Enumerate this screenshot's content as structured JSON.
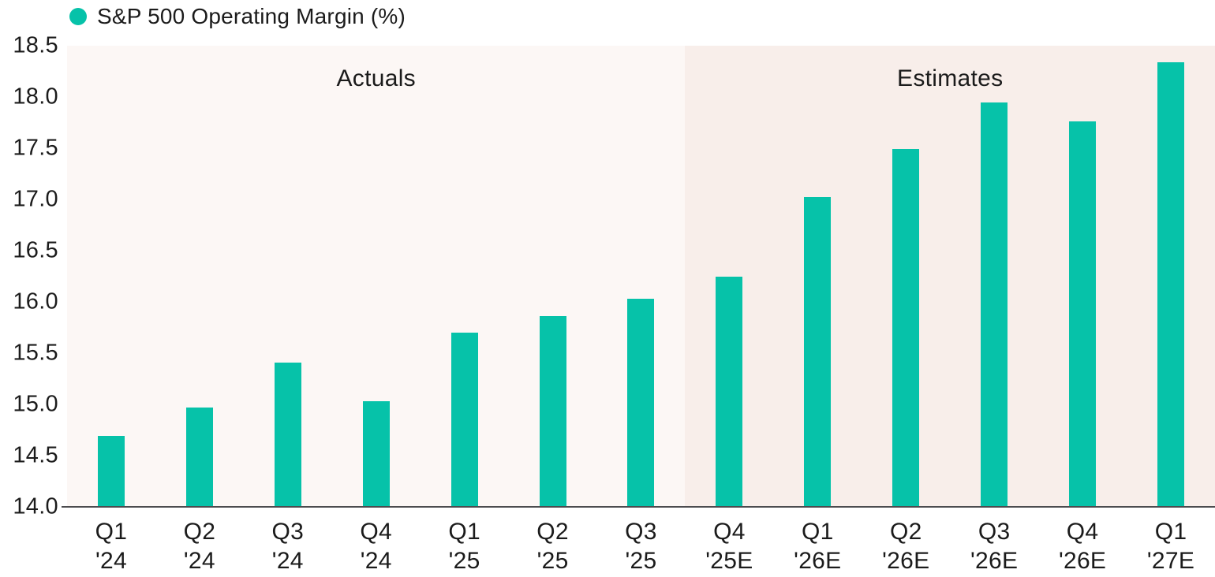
{
  "legend": {
    "label": "S&P 500 Operating Margin (%)"
  },
  "colors": {
    "bar": "#06c2a9",
    "axis_line": "#4c4c4f",
    "actuals_bg": "#fcf7f5",
    "estimates_bg": "#f8eeea"
  },
  "chart_data": {
    "type": "bar",
    "title": "S&P 500 Operating Margin (%)",
    "xlabel": "",
    "ylabel": "",
    "grid": false,
    "legend_position": "top-left",
    "ylim": [
      14.0,
      18.5
    ],
    "ytick_step": 0.5,
    "ytick_labels": [
      "18.5",
      "18.0",
      "17.5",
      "17.0",
      "16.5",
      "16.0",
      "15.5",
      "15.0",
      "14.5",
      "14.0"
    ],
    "categories": [
      "Q1 '24",
      "Q2 '24",
      "Q3 '24",
      "Q4 '24",
      "Q1 '25",
      "Q2 '25",
      "Q3 '25",
      "Q4 '25E",
      "Q1 '26E",
      "Q2 '26E",
      "Q3 '26E",
      "Q4 '26E",
      "Q1 '27E"
    ],
    "category_lines": [
      [
        "Q1",
        "'24"
      ],
      [
        "Q2",
        "'24"
      ],
      [
        "Q3",
        "'24"
      ],
      [
        "Q4",
        "'24"
      ],
      [
        "Q1",
        "'25"
      ],
      [
        "Q2",
        "'25"
      ],
      [
        "Q3",
        "'25"
      ],
      [
        "Q4",
        "'25E"
      ],
      [
        "Q1",
        "'26E"
      ],
      [
        "Q2",
        "'26E"
      ],
      [
        "Q3",
        "'26E"
      ],
      [
        "Q4",
        "'26E"
      ],
      [
        "Q1",
        "'27E"
      ]
    ],
    "values": [
      14.69,
      14.97,
      15.41,
      15.03,
      15.7,
      15.86,
      16.03,
      16.25,
      17.02,
      17.49,
      17.95,
      17.76,
      18.34
    ],
    "regions": [
      {
        "label": "Actuals",
        "start": 0,
        "end": 7,
        "bg": "#fcf7f5"
      },
      {
        "label": "Estimates",
        "start": 7,
        "end": 13,
        "bg": "#f8eeea"
      }
    ]
  }
}
